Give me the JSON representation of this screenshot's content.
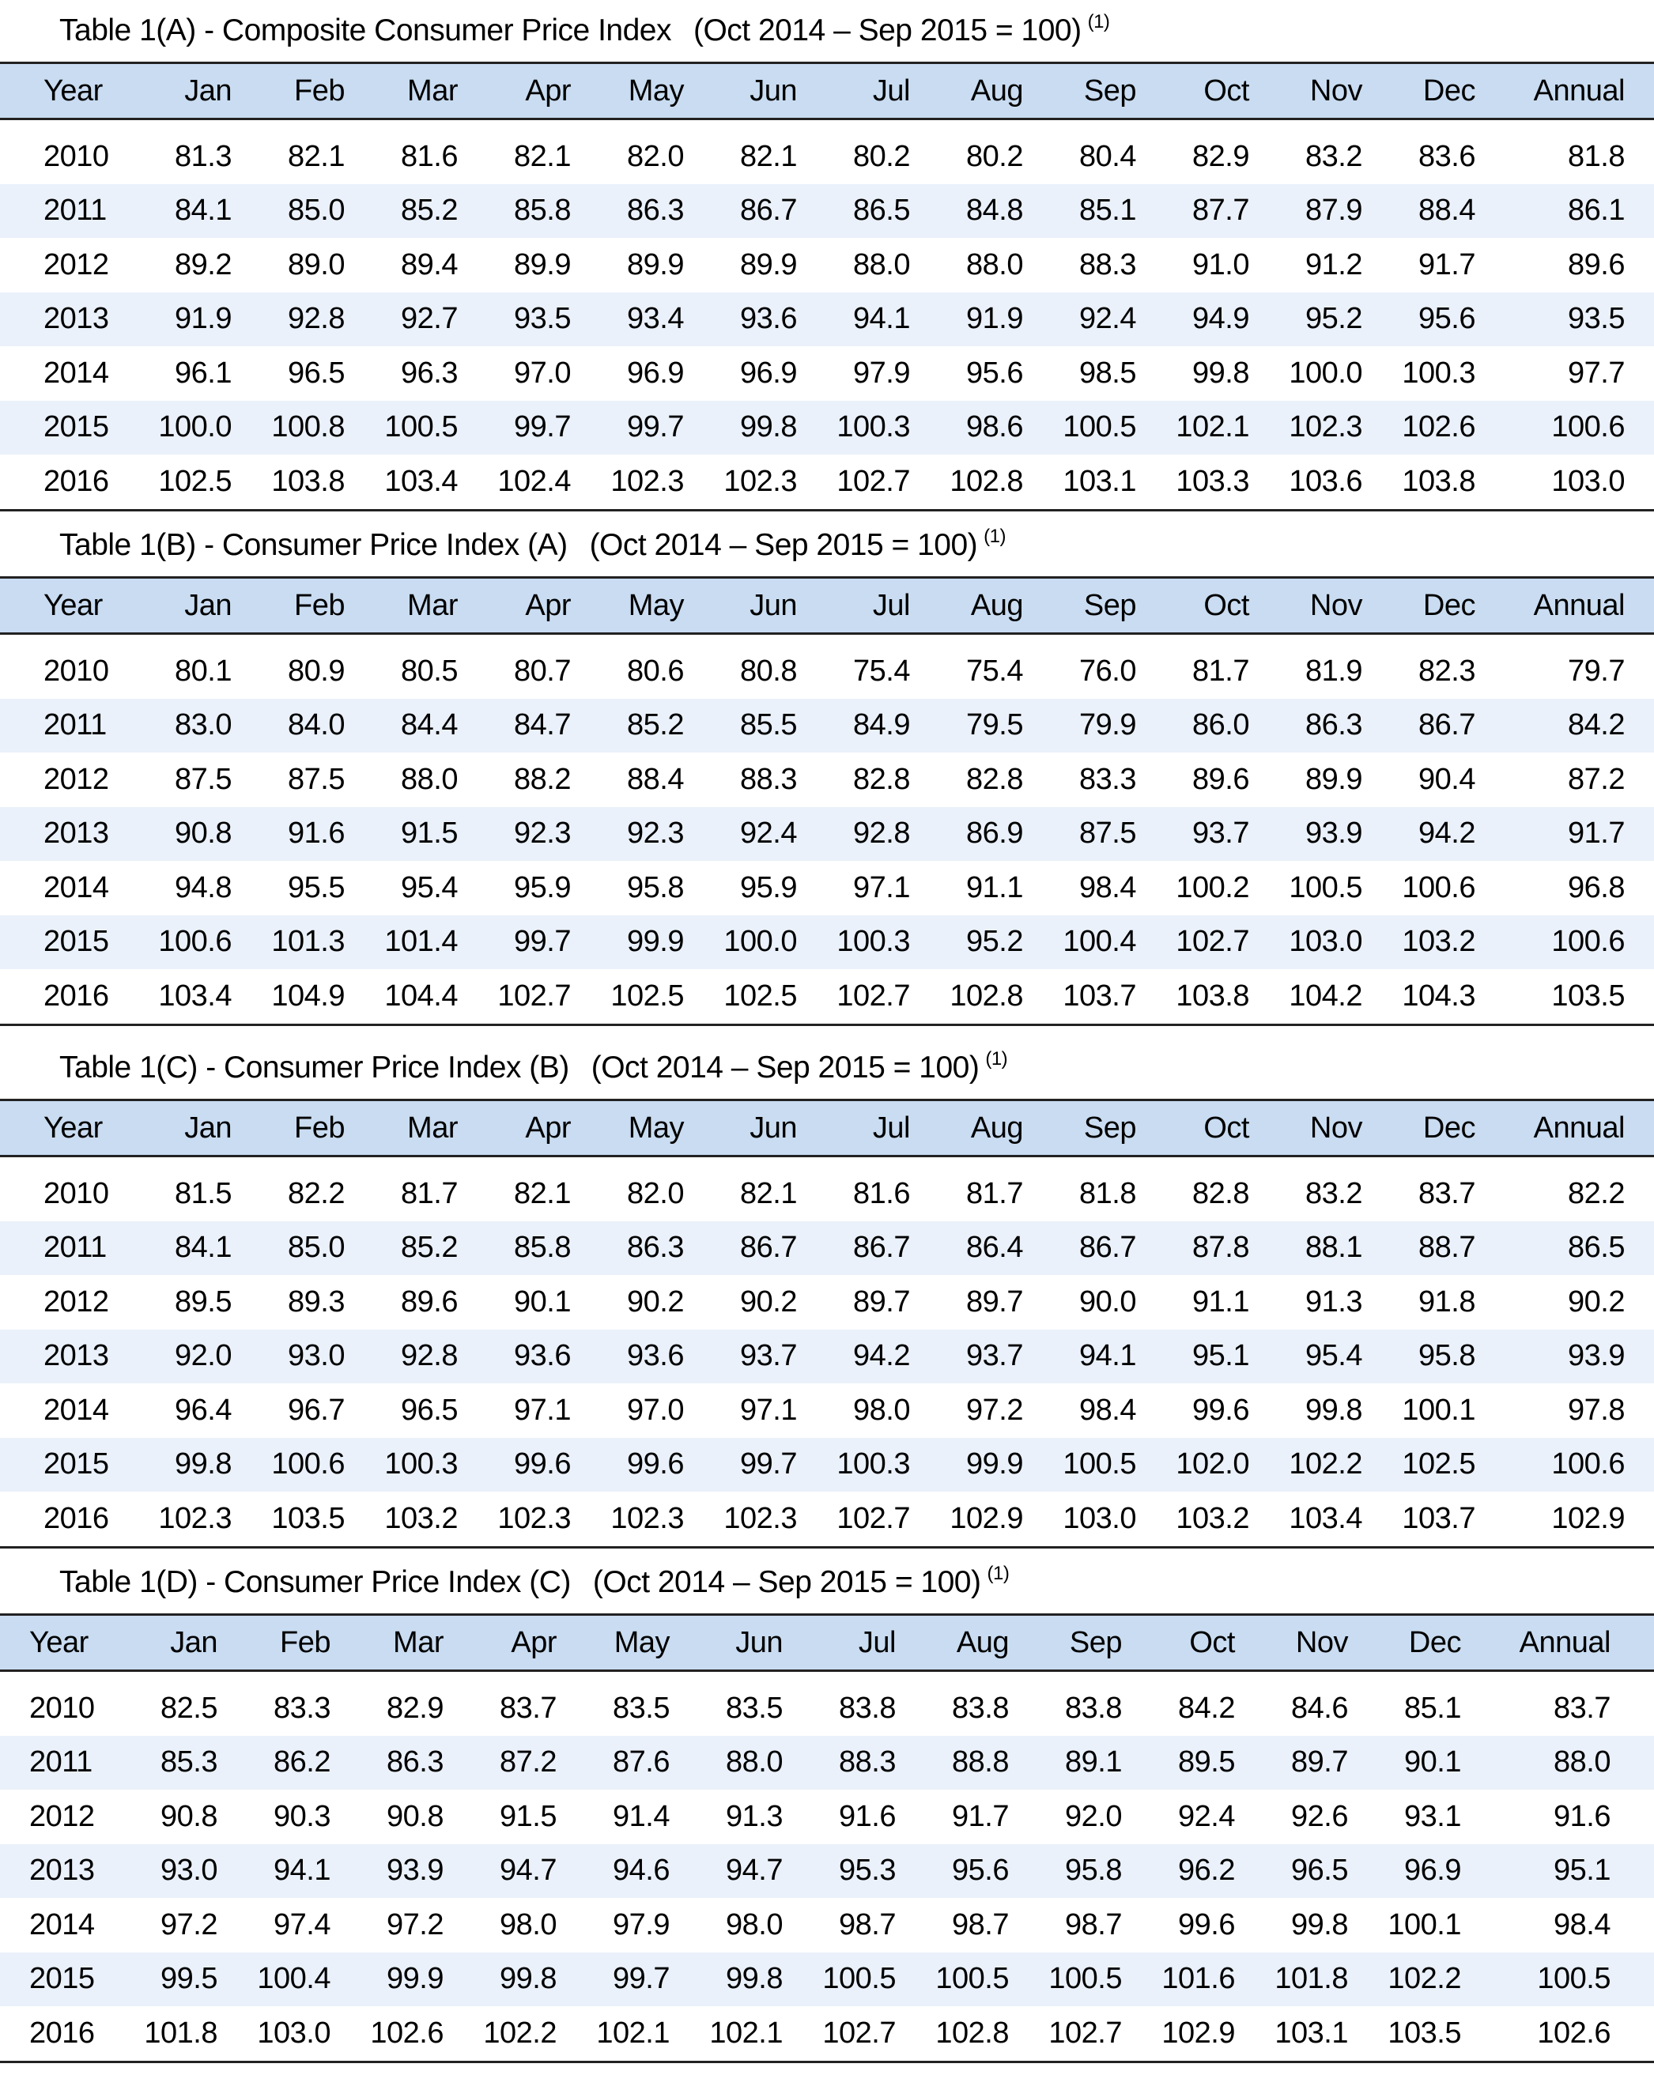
{
  "colors": {
    "header_bg": "#c9dcf1",
    "stripe_bg": "#eaf1fa",
    "rule": "#222222"
  },
  "columns": [
    "Year",
    "Jan",
    "Feb",
    "Mar",
    "Apr",
    "May",
    "Jun",
    "Jul",
    "Aug",
    "Sep",
    "Oct",
    "Nov",
    "Dec",
    "Annual"
  ],
  "tables": [
    {
      "title": "Table 1(A) - Composite Consumer Price Index",
      "base": "(Oct 2014 – Sep 2015 = 100)",
      "note": "(1)",
      "rows": [
        [
          "2010",
          "81.3",
          "82.1",
          "81.6",
          "82.1",
          "82.0",
          "82.1",
          "80.2",
          "80.2",
          "80.4",
          "82.9",
          "83.2",
          "83.6",
          "81.8"
        ],
        [
          "2011",
          "84.1",
          "85.0",
          "85.2",
          "85.8",
          "86.3",
          "86.7",
          "86.5",
          "84.8",
          "85.1",
          "87.7",
          "87.9",
          "88.4",
          "86.1"
        ],
        [
          "2012",
          "89.2",
          "89.0",
          "89.4",
          "89.9",
          "89.9",
          "89.9",
          "88.0",
          "88.0",
          "88.3",
          "91.0",
          "91.2",
          "91.7",
          "89.6"
        ],
        [
          "2013",
          "91.9",
          "92.8",
          "92.7",
          "93.5",
          "93.4",
          "93.6",
          "94.1",
          "91.9",
          "92.4",
          "94.9",
          "95.2",
          "95.6",
          "93.5"
        ],
        [
          "2014",
          "96.1",
          "96.5",
          "96.3",
          "97.0",
          "96.9",
          "96.9",
          "97.9",
          "95.6",
          "98.5",
          "99.8",
          "100.0",
          "100.3",
          "97.7"
        ],
        [
          "2015",
          "100.0",
          "100.8",
          "100.5",
          "99.7",
          "99.7",
          "99.8",
          "100.3",
          "98.6",
          "100.5",
          "102.1",
          "102.3",
          "102.6",
          "100.6"
        ],
        [
          "2016",
          "102.5",
          "103.8",
          "103.4",
          "102.4",
          "102.3",
          "102.3",
          "102.7",
          "102.8",
          "103.1",
          "103.3",
          "103.6",
          "103.8",
          "103.0"
        ]
      ]
    },
    {
      "title": "Table 1(B) - Consumer Price Index (A)",
      "base": "(Oct 2014 – Sep 2015 = 100)",
      "note": "(1)",
      "rows": [
        [
          "2010",
          "80.1",
          "80.9",
          "80.5",
          "80.7",
          "80.6",
          "80.8",
          "75.4",
          "75.4",
          "76.0",
          "81.7",
          "81.9",
          "82.3",
          "79.7"
        ],
        [
          "2011",
          "83.0",
          "84.0",
          "84.4",
          "84.7",
          "85.2",
          "85.5",
          "84.9",
          "79.5",
          "79.9",
          "86.0",
          "86.3",
          "86.7",
          "84.2"
        ],
        [
          "2012",
          "87.5",
          "87.5",
          "88.0",
          "88.2",
          "88.4",
          "88.3",
          "82.8",
          "82.8",
          "83.3",
          "89.6",
          "89.9",
          "90.4",
          "87.2"
        ],
        [
          "2013",
          "90.8",
          "91.6",
          "91.5",
          "92.3",
          "92.3",
          "92.4",
          "92.8",
          "86.9",
          "87.5",
          "93.7",
          "93.9",
          "94.2",
          "91.7"
        ],
        [
          "2014",
          "94.8",
          "95.5",
          "95.4",
          "95.9",
          "95.8",
          "95.9",
          "97.1",
          "91.1",
          "98.4",
          "100.2",
          "100.5",
          "100.6",
          "96.8"
        ],
        [
          "2015",
          "100.6",
          "101.3",
          "101.4",
          "99.7",
          "99.9",
          "100.0",
          "100.3",
          "95.2",
          "100.4",
          "102.7",
          "103.0",
          "103.2",
          "100.6"
        ],
        [
          "2016",
          "103.4",
          "104.9",
          "104.4",
          "102.7",
          "102.5",
          "102.5",
          "102.7",
          "102.8",
          "103.7",
          "103.8",
          "104.2",
          "104.3",
          "103.5"
        ]
      ]
    },
    {
      "title": "Table 1(C) - Consumer Price Index (B)",
      "base": "(Oct 2014 – Sep 2015 = 100)",
      "note": "(1)",
      "rows": [
        [
          "2010",
          "81.5",
          "82.2",
          "81.7",
          "82.1",
          "82.0",
          "82.1",
          "81.6",
          "81.7",
          "81.8",
          "82.8",
          "83.2",
          "83.7",
          "82.2"
        ],
        [
          "2011",
          "84.1",
          "85.0",
          "85.2",
          "85.8",
          "86.3",
          "86.7",
          "86.7",
          "86.4",
          "86.7",
          "87.8",
          "88.1",
          "88.7",
          "86.5"
        ],
        [
          "2012",
          "89.5",
          "89.3",
          "89.6",
          "90.1",
          "90.2",
          "90.2",
          "89.7",
          "89.7",
          "90.0",
          "91.1",
          "91.3",
          "91.8",
          "90.2"
        ],
        [
          "2013",
          "92.0",
          "93.0",
          "92.8",
          "93.6",
          "93.6",
          "93.7",
          "94.2",
          "93.7",
          "94.1",
          "95.1",
          "95.4",
          "95.8",
          "93.9"
        ],
        [
          "2014",
          "96.4",
          "96.7",
          "96.5",
          "97.1",
          "97.0",
          "97.1",
          "98.0",
          "97.2",
          "98.4",
          "99.6",
          "99.8",
          "100.1",
          "97.8"
        ],
        [
          "2015",
          "99.8",
          "100.6",
          "100.3",
          "99.6",
          "99.6",
          "99.7",
          "100.3",
          "99.9",
          "100.5",
          "102.0",
          "102.2",
          "102.5",
          "100.6"
        ],
        [
          "2016",
          "102.3",
          "103.5",
          "103.2",
          "102.3",
          "102.3",
          "102.3",
          "102.7",
          "102.9",
          "103.0",
          "103.2",
          "103.4",
          "103.7",
          "102.9"
        ]
      ]
    },
    {
      "title": "Table 1(D) - Consumer Price Index (C)",
      "base": "(Oct 2014 – Sep 2015 = 100)",
      "note": "(1)",
      "rows": [
        [
          "2010",
          "82.5",
          "83.3",
          "82.9",
          "83.7",
          "83.5",
          "83.5",
          "83.8",
          "83.8",
          "83.8",
          "84.2",
          "84.6",
          "85.1",
          "83.7"
        ],
        [
          "2011",
          "85.3",
          "86.2",
          "86.3",
          "87.2",
          "87.6",
          "88.0",
          "88.3",
          "88.8",
          "89.1",
          "89.5",
          "89.7",
          "90.1",
          "88.0"
        ],
        [
          "2012",
          "90.8",
          "90.3",
          "90.8",
          "91.5",
          "91.4",
          "91.3",
          "91.6",
          "91.7",
          "92.0",
          "92.4",
          "92.6",
          "93.1",
          "91.6"
        ],
        [
          "2013",
          "93.0",
          "94.1",
          "93.9",
          "94.7",
          "94.6",
          "94.7",
          "95.3",
          "95.6",
          "95.8",
          "96.2",
          "96.5",
          "96.9",
          "95.1"
        ],
        [
          "2014",
          "97.2",
          "97.4",
          "97.2",
          "98.0",
          "97.9",
          "98.0",
          "98.7",
          "98.7",
          "98.7",
          "99.6",
          "99.8",
          "100.1",
          "98.4"
        ],
        [
          "2015",
          "99.5",
          "100.4",
          "99.9",
          "99.8",
          "99.7",
          "99.8",
          "100.5",
          "100.5",
          "100.5",
          "101.6",
          "101.8",
          "102.2",
          "100.5"
        ],
        [
          "2016",
          "101.8",
          "103.0",
          "102.6",
          "102.2",
          "102.1",
          "102.1",
          "102.7",
          "102.8",
          "102.7",
          "102.9",
          "103.1",
          "103.5",
          "102.6"
        ]
      ]
    }
  ]
}
